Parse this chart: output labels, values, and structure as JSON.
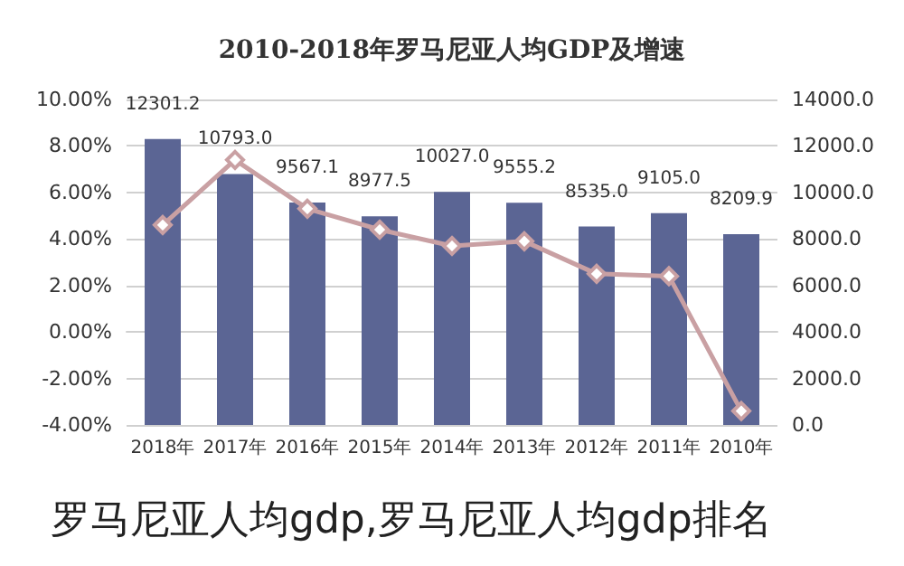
{
  "chart_data": {
    "type": "bar",
    "title": "2010-2018年罗马尼亚人均GDP及增速",
    "categories": [
      "2018年",
      "2017年",
      "2016年",
      "2015年",
      "2014年",
      "2013年",
      "2012年",
      "2011年",
      "2010年"
    ],
    "series": [
      {
        "type": "bar",
        "axis": "y2",
        "color": "#5b6594",
        "values": [
          12301.2,
          10793.0,
          9567.1,
          8977.5,
          10027.0,
          9555.2,
          8535.0,
          9105.0,
          8209.9
        ],
        "value_labels": [
          "12301.2",
          "10793.0",
          "9567.1",
          "8977.5",
          "10027.0",
          "9555.2",
          "8535.0",
          "9105.0",
          "8209.9"
        ]
      },
      {
        "type": "line",
        "axis": "y",
        "color": "#c9a0a3",
        "marker": "diamond",
        "values": [
          4.6,
          7.4,
          5.3,
          4.4,
          3.7,
          3.9,
          2.5,
          2.4,
          -3.4
        ]
      }
    ],
    "ylim": [
      -4,
      10
    ],
    "yticks": [
      {
        "value": -4,
        "label": "-4.00%"
      },
      {
        "value": -2,
        "label": "-2.00%"
      },
      {
        "value": 0,
        "label": "0.00%"
      },
      {
        "value": 2,
        "label": "2.00%"
      },
      {
        "value": 4,
        "label": "4.00%"
      },
      {
        "value": 6,
        "label": "6.00%"
      },
      {
        "value": 8,
        "label": "8.00%"
      },
      {
        "value": 10,
        "label": "10.00%"
      }
    ],
    "y2lim": [
      0,
      14000
    ],
    "y2ticks": [
      {
        "value": 0,
        "label": "0.0"
      },
      {
        "value": 2000,
        "label": "2000.0"
      },
      {
        "value": 4000,
        "label": "4000.0"
      },
      {
        "value": 6000,
        "label": "6000.0"
      },
      {
        "value": 8000,
        "label": "8000.0"
      },
      {
        "value": 10000,
        "label": "10000.0"
      },
      {
        "value": 12000,
        "label": "12000.0"
      },
      {
        "value": 14000,
        "label": "14000.0"
      }
    ],
    "grid": "y",
    "annotations": [
      "罗马尼亚人均gdp,罗马尼亚人均gdp排名"
    ]
  }
}
